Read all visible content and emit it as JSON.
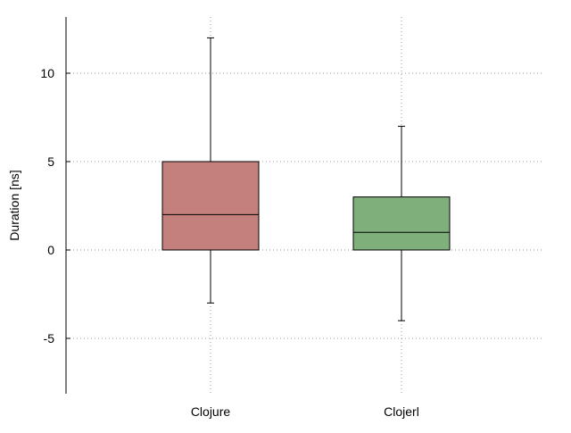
{
  "chart_data": {
    "type": "box",
    "title": "",
    "xlabel": "",
    "ylabel": "Duration [ns]",
    "ylim": [
      -8,
      13
    ],
    "yticks": [
      -5,
      0,
      5,
      10
    ],
    "ytick_labels": [
      "-5",
      "0",
      "5",
      "10"
    ],
    "grid": true,
    "categories": [
      "Clojure",
      "Clojerl"
    ],
    "boxes": [
      {
        "category": "Clojure",
        "whisker_low": -3,
        "q1": 0,
        "median": 2,
        "q3": 5,
        "whisker_high": 12,
        "color": "#c4807d"
      },
      {
        "category": "Clojerl",
        "whisker_low": -4,
        "q1": 0,
        "median": 1,
        "q3": 3,
        "whisker_high": 7,
        "color": "#7fb07c"
      }
    ]
  }
}
